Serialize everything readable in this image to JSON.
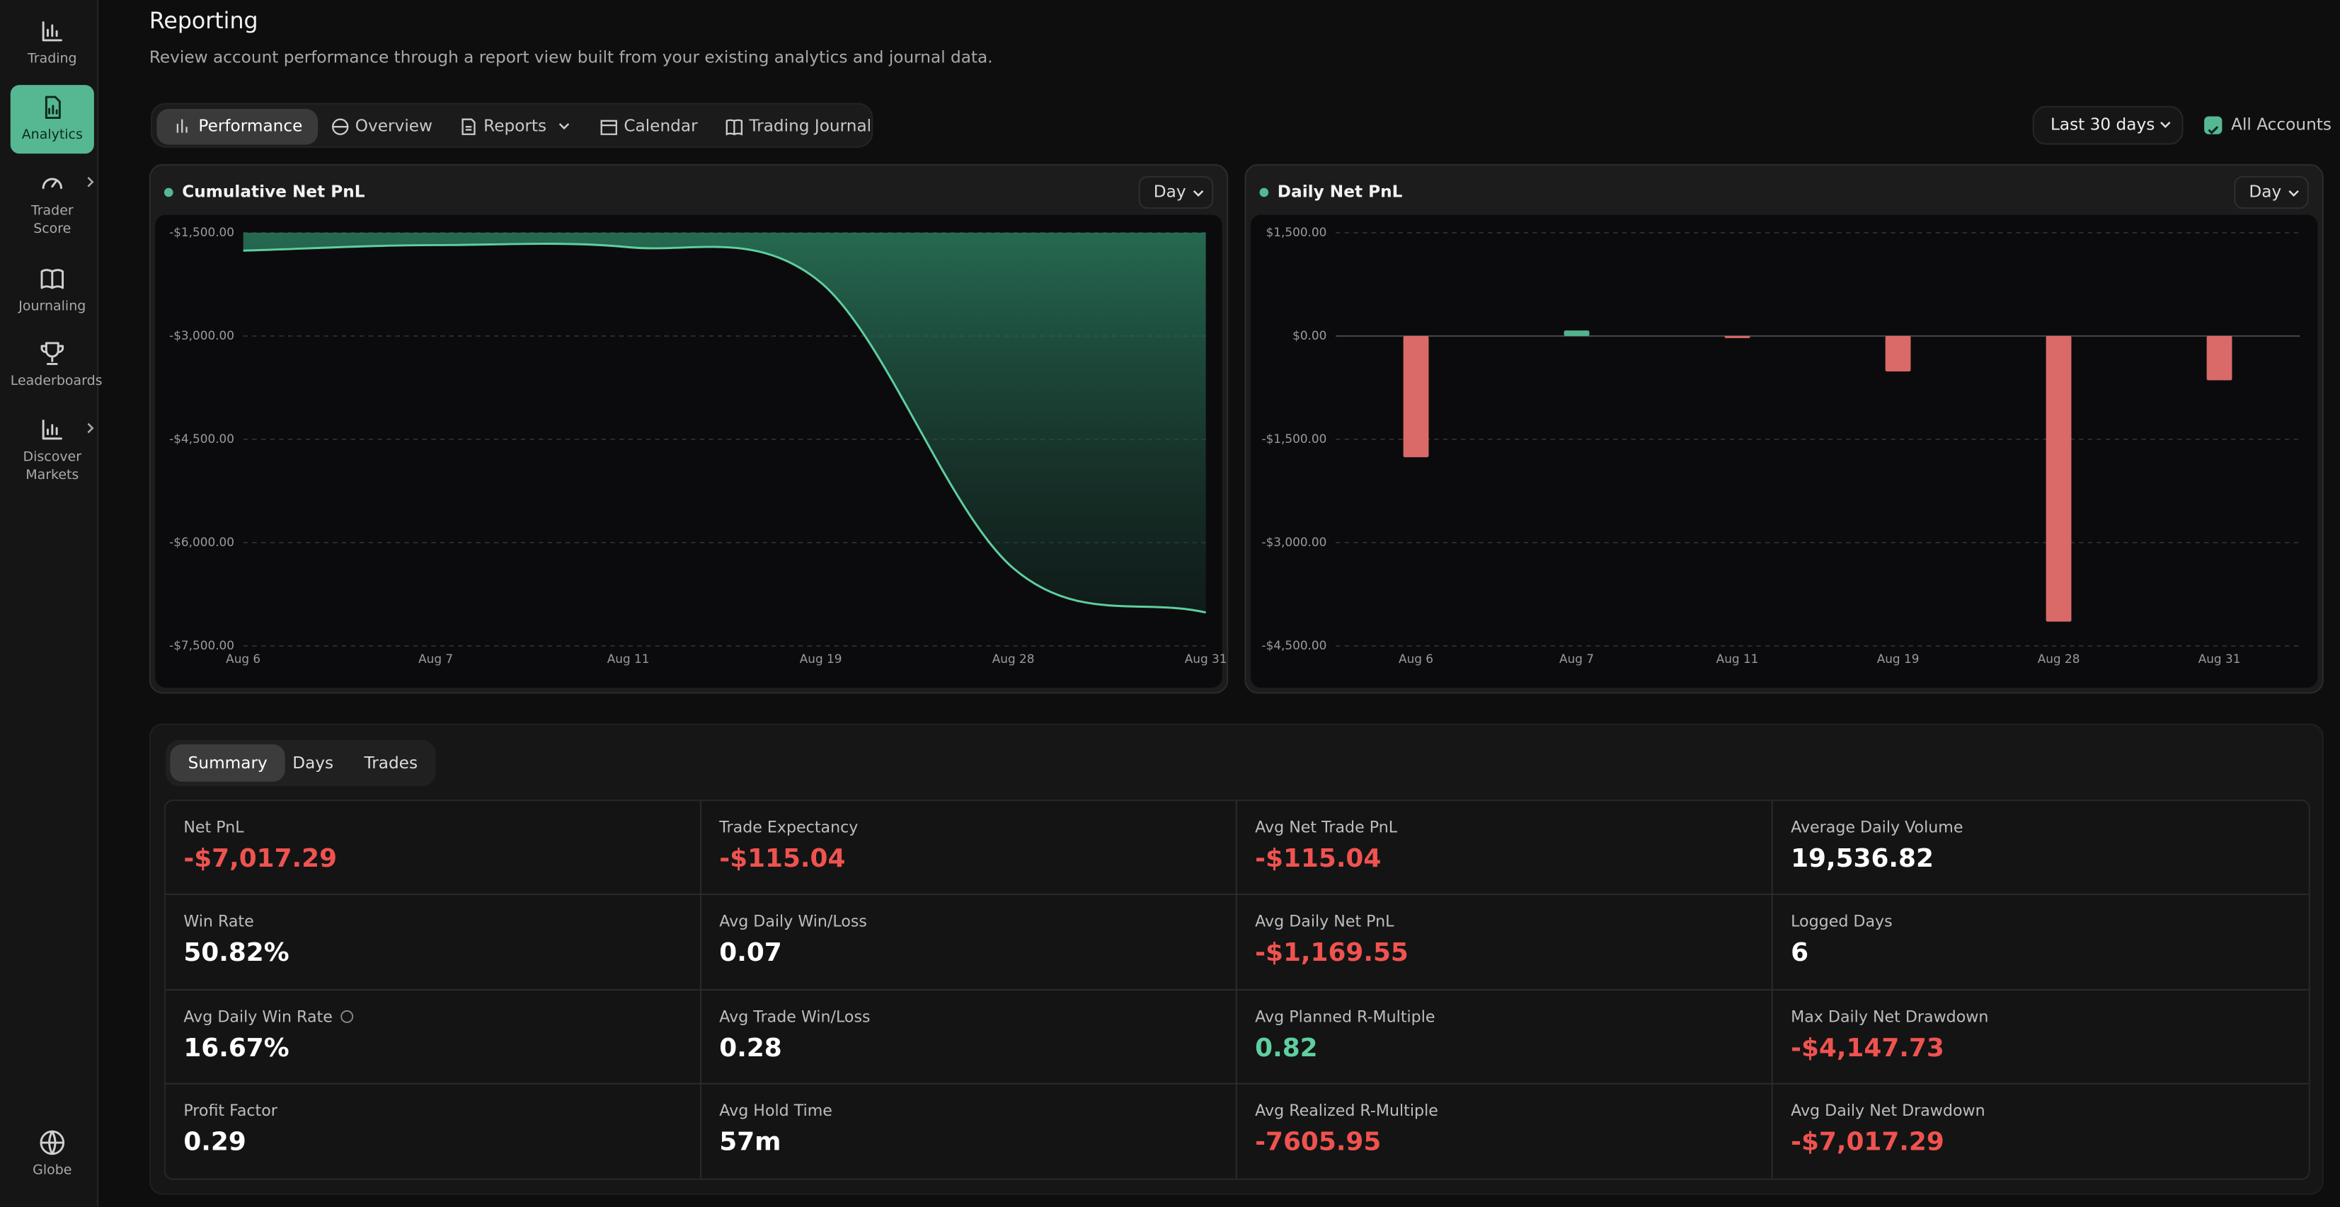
{
  "sidebar": {
    "items": [
      {
        "label": "Trading"
      },
      {
        "label": "Analytics",
        "active": true
      },
      {
        "label": "Trader Score",
        "submenu": true
      },
      {
        "label": "Journaling"
      },
      {
        "label": "Leaderboards"
      },
      {
        "label": "Discover Markets",
        "submenu": true
      }
    ],
    "footer": "Globe"
  },
  "header": {
    "title": "Reporting",
    "subtitle": "Review account performance through a report view built from your existing analytics and journal data."
  },
  "tabs": {
    "items": [
      "Performance",
      "Overview",
      "Reports",
      "Calendar",
      "Trading Journal"
    ],
    "active": 0
  },
  "filters": {
    "range": "Last 30 days",
    "accounts": "All Accounts"
  },
  "charts": [
    {
      "type": "area",
      "title": "Cumulative Net PnL",
      "interval": "Day",
      "color": "#5fcf9f",
      "categories": [
        "Aug 6",
        "Aug 7",
        "Aug 11",
        "Aug 19",
        "Aug 28",
        "Aug 31"
      ],
      "values": [
        -1760,
        -1680,
        -1710,
        -2224,
        -6372,
        -7015
      ],
      "ylim": [
        -7500,
        -1500
      ],
      "yticks": [
        {
          "value": -1500,
          "label": "-$1,500.00"
        },
        {
          "value": -3000,
          "label": "-$3,000.00"
        },
        {
          "value": -4500,
          "label": "-$4,500.00"
        },
        {
          "value": -6000,
          "label": "-$6,000.00"
        },
        {
          "value": -7500,
          "label": "-$7,500.00"
        }
      ]
    },
    {
      "type": "bar",
      "title": "Daily Net PnL",
      "interval": "Day",
      "positive_color": "#4fb38f",
      "negative_color": "#d96a68",
      "categories": [
        "Aug 6",
        "Aug 7",
        "Aug 11",
        "Aug 19",
        "Aug 28",
        "Aug 31"
      ],
      "values": [
        -1760,
        80,
        -30,
        -514,
        -4147.73,
        -643
      ],
      "ylim": [
        -4500,
        1500
      ],
      "yticks": [
        {
          "value": 1500,
          "label": "$1,500.00"
        },
        {
          "value": 0,
          "label": "$0.00"
        },
        {
          "value": -1500,
          "label": "-$1,500.00"
        },
        {
          "value": -3000,
          "label": "-$3,000.00"
        },
        {
          "value": -4500,
          "label": "-$4,500.00"
        }
      ]
    }
  ],
  "summary": {
    "tabs": [
      "Summary",
      "Days",
      "Trades"
    ],
    "active": 0,
    "stats": [
      {
        "label": "Net PnL",
        "value": "-$7,017.29",
        "color": "#ef5350"
      },
      {
        "label": "Trade Expectancy",
        "value": "-$115.04",
        "color": "#ef5350"
      },
      {
        "label": "Avg Net Trade PnL",
        "value": "-$115.04",
        "color": "#ef5350"
      },
      {
        "label": "Average Daily Volume",
        "value": "19,536.82",
        "color": "#ffffff"
      },
      {
        "label": "Win Rate",
        "value": "50.82%",
        "color": "#ffffff"
      },
      {
        "label": "Avg Daily Win/Loss",
        "value": "0.07",
        "color": "#ffffff"
      },
      {
        "label": "Avg Daily Net PnL",
        "value": "-$1,169.55",
        "color": "#ef5350"
      },
      {
        "label": "Logged Days",
        "value": "6",
        "color": "#ffffff"
      },
      {
        "label": "Avg Daily Win Rate",
        "value": "16.67%",
        "color": "#ffffff",
        "info": true
      },
      {
        "label": "Avg Trade Win/Loss",
        "value": "0.28",
        "color": "#ffffff"
      },
      {
        "label": "Avg Planned R-Multiple",
        "value": "0.82",
        "color": "#5fcf9f"
      },
      {
        "label": "Max Daily Net Drawdown",
        "value": "-$4,147.73",
        "color": "#ef5350"
      },
      {
        "label": "Profit Factor",
        "value": "0.29",
        "color": "#ffffff"
      },
      {
        "label": "Avg Hold Time",
        "value": "57m",
        "color": "#ffffff"
      },
      {
        "label": "Avg Realized R-Multiple",
        "value": "-7605.95",
        "color": "#ef5350"
      },
      {
        "label": "Avg Daily Net Drawdown",
        "value": "-$7,017.29",
        "color": "#ef5350"
      }
    ]
  }
}
